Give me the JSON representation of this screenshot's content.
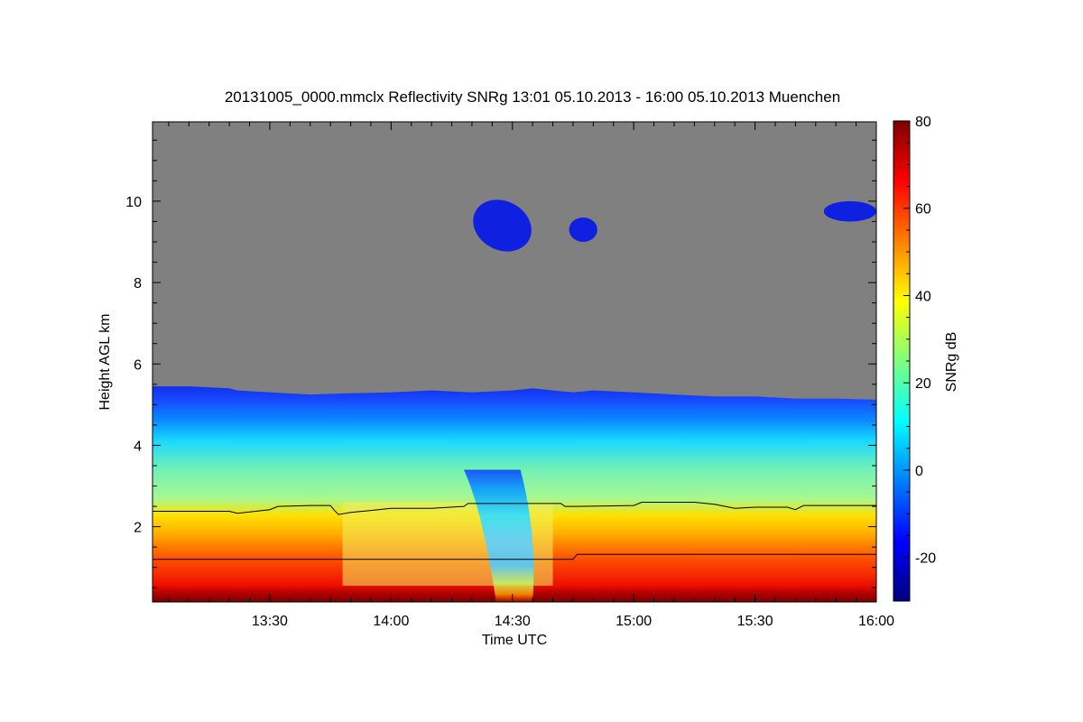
{
  "chart_data": {
    "type": "heatmap",
    "title": "20131005_0000.mmclx Reflectivity SNRg   13:01 05.10.2013 - 16:00 05.10.2013 Muenchen",
    "xlabel": "Time UTC",
    "ylabel": "Height AGL km",
    "x_tick_labels": [
      "13:30",
      "14:00",
      "14:30",
      "15:00",
      "15:30",
      "16:00"
    ],
    "x_tick_minutes": [
      30,
      60,
      90,
      120,
      150,
      180
    ],
    "x_range_minutes": [
      1,
      180
    ],
    "y_ticks": [
      2,
      4,
      6,
      8,
      10
    ],
    "y_tick_labels": [
      "2",
      "4",
      "6",
      "8",
      "10"
    ],
    "y_range": [
      0.15,
      11.95
    ],
    "colorbar": {
      "label": "SNRg dB",
      "range": [
        -30,
        80
      ],
      "ticks": [
        -20,
        0,
        20,
        40,
        60,
        80
      ],
      "tick_labels": [
        "-20",
        "0",
        "20",
        "40",
        "60",
        "80"
      ],
      "colors": [
        "#00007f",
        "#0000ff",
        "#007fff",
        "#00ffff",
        "#7fff7f",
        "#ffff00",
        "#ff7f00",
        "#ff0000",
        "#7f0000"
      ]
    },
    "background_color": "#808080",
    "cloud_top_km": [
      [
        1,
        5.45
      ],
      [
        10,
        5.45
      ],
      [
        20,
        5.4
      ],
      [
        22,
        5.35
      ],
      [
        30,
        5.3
      ],
      [
        40,
        5.25
      ],
      [
        50,
        5.28
      ],
      [
        60,
        5.3
      ],
      [
        70,
        5.35
      ],
      [
        80,
        5.3
      ],
      [
        90,
        5.35
      ],
      [
        95,
        5.4
      ],
      [
        100,
        5.35
      ],
      [
        105,
        5.3
      ],
      [
        110,
        5.35
      ],
      [
        120,
        5.3
      ],
      [
        130,
        5.25
      ],
      [
        140,
        5.2
      ],
      [
        150,
        5.2
      ],
      [
        160,
        5.15
      ],
      [
        170,
        5.15
      ],
      [
        180,
        5.12
      ]
    ],
    "upper_cloud_patches": [
      {
        "t0": 80,
        "t1": 95,
        "z0": 8.8,
        "z1": 10.0
      },
      {
        "t0": 104,
        "t1": 111,
        "z0": 9.0,
        "z1": 9.6
      },
      {
        "t0": 167,
        "t1": 180,
        "z0": 9.5,
        "z1": 10.0
      }
    ],
    "lines": [
      {
        "points": [
          [
            1,
            2.38
          ],
          [
            20,
            2.38
          ],
          [
            22,
            2.33
          ],
          [
            30,
            2.42
          ],
          [
            32,
            2.5
          ],
          [
            40,
            2.52
          ],
          [
            45,
            2.52
          ],
          [
            46,
            2.4
          ],
          [
            47,
            2.3
          ],
          [
            50,
            2.35
          ],
          [
            55,
            2.4
          ],
          [
            60,
            2.45
          ],
          [
            70,
            2.45
          ],
          [
            78,
            2.5
          ],
          [
            79,
            2.57
          ],
          [
            102,
            2.57
          ],
          [
            103,
            2.5
          ],
          [
            106,
            2.5
          ],
          [
            120,
            2.52
          ],
          [
            122,
            2.6
          ],
          [
            135,
            2.6
          ],
          [
            140,
            2.55
          ],
          [
            145,
            2.45
          ],
          [
            150,
            2.48
          ],
          [
            158,
            2.48
          ],
          [
            160,
            2.42
          ],
          [
            162,
            2.52
          ],
          [
            180,
            2.52
          ]
        ]
      },
      {
        "points": [
          [
            1,
            1.2
          ],
          [
            105,
            1.2
          ],
          [
            106,
            1.32
          ],
          [
            180,
            1.32
          ]
        ]
      }
    ]
  }
}
